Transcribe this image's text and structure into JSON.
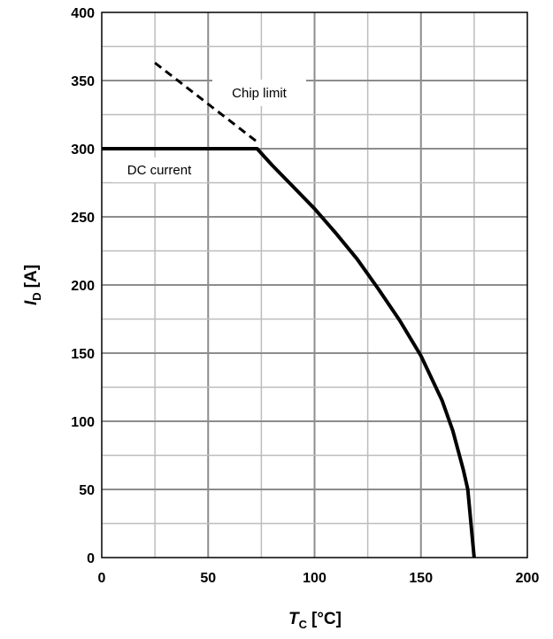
{
  "chart_data": {
    "type": "line",
    "xlabel": {
      "symbol": "T",
      "subscript": "C",
      "unit": "[°C]"
    },
    "ylabel": {
      "symbol": "I",
      "subscript": "D",
      "unit": "[A]"
    },
    "xlim": [
      0,
      200
    ],
    "ylim": [
      0,
      400
    ],
    "x_ticks": [
      0,
      50,
      100,
      150,
      200
    ],
    "y_ticks": [
      0,
      50,
      100,
      150,
      200,
      250,
      300,
      350,
      400
    ],
    "x_minor_step": 25,
    "y_minor_step": 25,
    "grid": true,
    "legend": "none",
    "series": [
      {
        "label": "DC current",
        "style": "solid",
        "color": "#000000",
        "x": [
          0,
          73,
          80,
          90,
          100,
          110,
          120,
          130,
          140,
          150,
          160,
          165,
          170,
          172,
          175
        ],
        "y": [
          300,
          300,
          288,
          272,
          256,
          238,
          219,
          197,
          174,
          148,
          115,
          93,
          64,
          50,
          0
        ]
      },
      {
        "label": "Chip limit",
        "style": "dashed",
        "color": "#000000",
        "x": [
          25,
          73
        ],
        "y": [
          363,
          305
        ]
      }
    ]
  }
}
